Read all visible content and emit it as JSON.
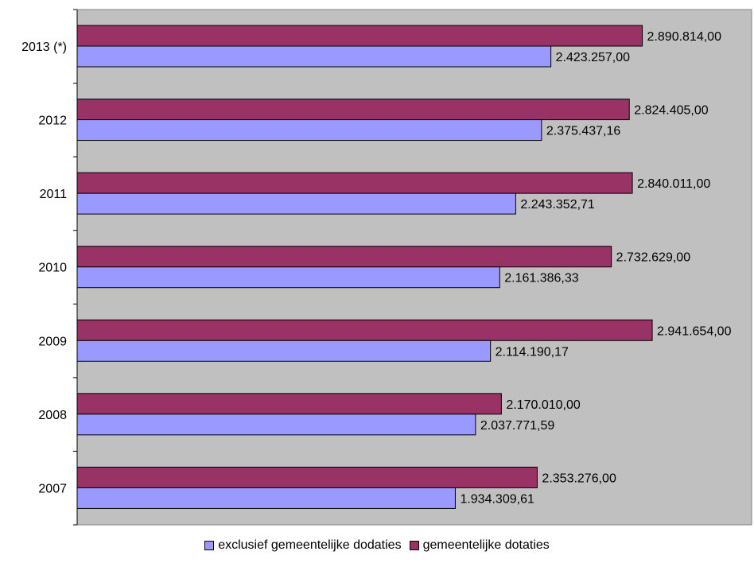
{
  "chart_data": {
    "type": "bar",
    "orientation": "horizontal",
    "categories": [
      "2013 (*)",
      "2012",
      "2011",
      "2010",
      "2009",
      "2008",
      "2007"
    ],
    "series": [
      {
        "name": "gemeentelijke dotaties",
        "color": "#993366",
        "values": [
          2890814.0,
          2824405.0,
          2840011.0,
          2732629.0,
          2941654.0,
          2170010.0,
          2353276.0
        ],
        "labels": [
          "2.890.814,00",
          "2.824.405,00",
          "2.840.011,00",
          "2.732.629,00",
          "2.941.654,00",
          "2.170.010,00",
          "2.353.276,00"
        ]
      },
      {
        "name": "exclusief gemeentelijke dodaties",
        "color": "#9999FF",
        "values": [
          2423257.0,
          2375437.16,
          2243352.71,
          2161386.33,
          2114190.17,
          2037771.59,
          1934309.61
        ],
        "labels": [
          "2.423.257,00",
          "2.375.437,16",
          "2.243.352,71",
          "2.161.386,33",
          "2.114.190,17",
          "2.037.771,59",
          "1.934.309,61"
        ]
      }
    ],
    "xlim": [
      0,
      3450000
    ],
    "plot_background": "#C0C0C0",
    "grid": false,
    "value_axis_visible": false,
    "legend_position": "bottom",
    "legend": [
      "exclusief gemeentelijke dodaties",
      "gemeentelijke dotaties"
    ]
  }
}
